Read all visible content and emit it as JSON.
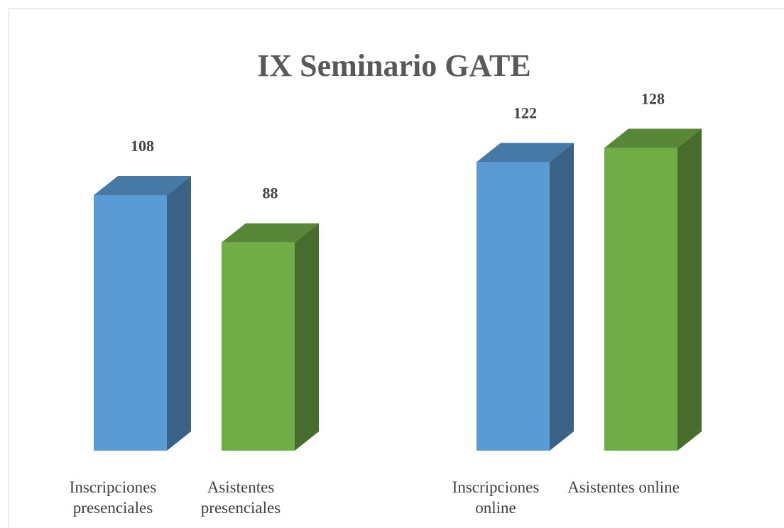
{
  "chart_data": {
    "type": "bar3d",
    "title": "IX Seminario GATE",
    "categories": [
      "Inscripciones presenciales",
      "Asistentes presenciales",
      "Inscripciones online",
      "Asistentes online"
    ],
    "values": [
      108,
      88,
      122,
      128
    ],
    "colors": [
      "#5b9bd5",
      "#70ad47",
      "#5b9bd5",
      "#70ad47"
    ]
  }
}
